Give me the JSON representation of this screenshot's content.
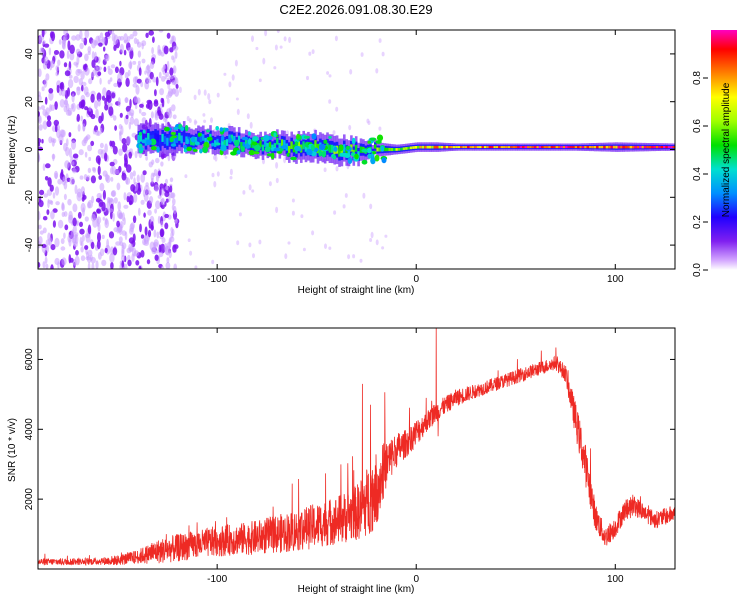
{
  "title": "C2E2.2026.091.08.30.E29",
  "chart_data": [
    {
      "type": "heatmap",
      "title": "C2E2.2026.091.08.30.E29",
      "xlabel": "Height of straight line (km)",
      "ylabel": "Frequency (Hz)",
      "xlim": [
        -190,
        130
      ],
      "ylim": [
        -50,
        50
      ],
      "xticks": [
        -100,
        0,
        100
      ],
      "yticks": [
        -40,
        -20,
        0,
        20,
        40
      ],
      "colorbar": {
        "label": "Normalized spectral amplitude",
        "range": [
          0,
          1
        ],
        "ticks": [
          0.0,
          0.2,
          0.4,
          0.6,
          0.8
        ],
        "colors": [
          "#ffffff",
          "#c080ff",
          "#6000e0",
          "#0000ff",
          "#00a0ff",
          "#00e0e0",
          "#00e000",
          "#a0ff00",
          "#ffff00",
          "#ff8000",
          "#ff0000",
          "#ff00a0"
        ]
      },
      "ridge": {
        "x": [
          -140,
          -130,
          -120,
          -110,
          -100,
          -90,
          -80,
          -70,
          -60,
          -50,
          -40,
          -30,
          -20,
          -10,
          0,
          10,
          20,
          40,
          60,
          80,
          100,
          130
        ],
        "center_hz": [
          4,
          4,
          5,
          4,
          4,
          3,
          2,
          2,
          1,
          1,
          0,
          -1,
          0,
          0,
          1,
          1,
          1,
          1,
          1,
          1,
          1,
          1
        ],
        "half_width_hz": [
          6,
          6,
          6,
          5,
          5,
          5,
          5,
          5,
          6,
          6,
          6,
          5,
          3,
          2,
          2,
          2,
          1.5,
          1.5,
          1.5,
          1.5,
          2,
          1.5
        ],
        "amplitude": [
          0.3,
          0.35,
          0.35,
          0.35,
          0.35,
          0.4,
          0.4,
          0.45,
          0.5,
          0.5,
          0.5,
          0.5,
          0.55,
          0.6,
          0.7,
          0.75,
          0.8,
          0.85,
          0.9,
          0.9,
          0.85,
          0.95
        ]
      },
      "noise_extent_km": [
        -190,
        -130
      ]
    },
    {
      "type": "line",
      "xlabel": "Height of straight line (km)",
      "ylabel": "SNR (10 * v/v)",
      "xlim": [
        -190,
        130
      ],
      "ylim": [
        0,
        6900
      ],
      "xticks": [
        -100,
        0,
        100
      ],
      "yticks": [
        2000,
        4000,
        6000
      ],
      "series": [
        {
          "name": "SNR",
          "color": "#ee2a24",
          "x": [
            -190,
            -160,
            -150,
            -140,
            -130,
            -120,
            -110,
            -100,
            -90,
            -80,
            -70,
            -60,
            -50,
            -40,
            -30,
            -25,
            -20,
            -15,
            -10,
            -5,
            0,
            5,
            10,
            15,
            20,
            30,
            40,
            50,
            60,
            65,
            70,
            75,
            80,
            85,
            90,
            95,
            100,
            105,
            110,
            115,
            120,
            125,
            130
          ],
          "mean": [
            200,
            220,
            250,
            350,
            500,
            600,
            700,
            800,
            850,
            900,
            1000,
            1100,
            1250,
            1400,
            1600,
            1900,
            2300,
            3000,
            3400,
            3600,
            3900,
            4200,
            4500,
            4700,
            4900,
            5100,
            5300,
            5500,
            5700,
            5800,
            5900,
            5600,
            4300,
            3000,
            1500,
            900,
            1200,
            1700,
            1800,
            1600,
            1400,
            1500,
            1600
          ],
          "noise": [
            100,
            100,
            150,
            200,
            350,
            400,
            400,
            450,
            450,
            500,
            550,
            600,
            650,
            700,
            800,
            1000,
            1100,
            700,
            500,
            400,
            400,
            300,
            300,
            250,
            250,
            200,
            200,
            200,
            200,
            200,
            200,
            250,
            500,
            600,
            400,
            300,
            300,
            300,
            300,
            250,
            250,
            250,
            250
          ],
          "spikes": [
            {
              "x": -27,
              "y": 5300
            },
            {
              "x": -23,
              "y": 4700
            },
            {
              "x": -12,
              "y": 3300
            },
            {
              "x": 5,
              "y": 4900
            },
            {
              "x": 10,
              "y": 6900
            },
            {
              "x": 11,
              "y": 3800
            }
          ]
        }
      ]
    }
  ]
}
